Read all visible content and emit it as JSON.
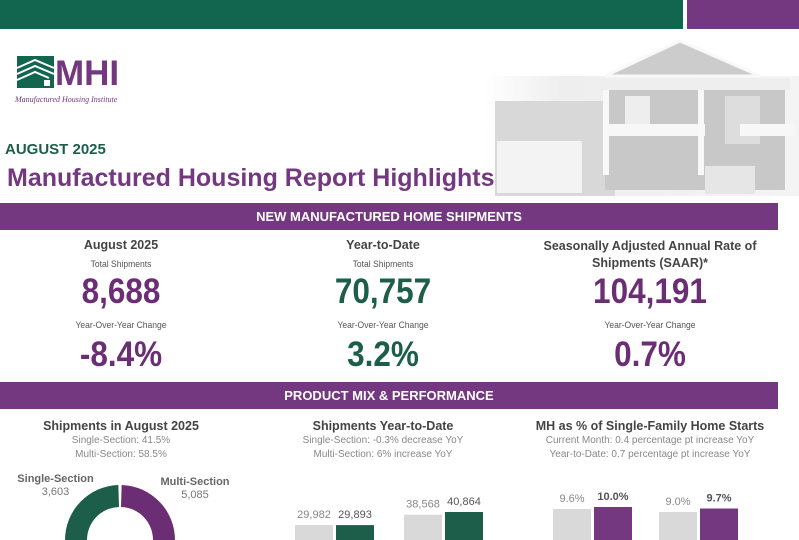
{
  "header": {
    "logo_text": "MHI",
    "logo_subtitle": "Manufactured Housing Institute",
    "date": "AUGUST 2025",
    "title": "Manufactured Housing Report Highlights"
  },
  "colors": {
    "green": "#12654f",
    "purple": "#733880",
    "gray": "#d9d9d9"
  },
  "shipments": {
    "band": "NEW MANUFACTURED HOME SHIPMENTS",
    "cards": [
      {
        "heading": "August 2025",
        "sub": "Total Shipments",
        "value": "8,688",
        "yoy_label": "Year-Over-Year Change",
        "yoy": "-8.4%"
      },
      {
        "heading": "Year-to-Date",
        "sub": "Total Shipments",
        "value": "70,757",
        "yoy_label": "Year-Over-Year Change",
        "yoy": "3.2%"
      },
      {
        "heading": "Seasonally Adjusted Annual Rate of Shipments (SAAR)*",
        "sub": "",
        "value": "104,191",
        "yoy_label": "Year-Over-Year Change",
        "yoy": "0.7%"
      }
    ]
  },
  "product_mix": {
    "band": "PRODUCT MIX & PERFORMANCE",
    "panels": [
      {
        "heading": "Shipments in August 2025",
        "lines": [
          "Single-Section: 41.5%",
          "Multi-Section: 58.5%"
        ]
      },
      {
        "heading": "Shipments Year-to-Date",
        "lines": [
          "Single-Section: -0.3% decrease YoY",
          "Multi-Section: 6% increase YoY"
        ]
      },
      {
        "heading": "MH as % of Single-Family Home Starts",
        "lines": [
          "Current Month: 0.4 percentage pt increase YoY",
          "Year-to-Date: 0.7 percentage pt increase YoY"
        ]
      }
    ]
  },
  "chart_data": [
    {
      "type": "pie",
      "donut": true,
      "slices": [
        {
          "name": "Single-Section",
          "value": 3603,
          "label": "3,603",
          "color": "#1c5e49"
        },
        {
          "name": "Multi-Section",
          "value": 5085,
          "label": "5,085",
          "color": "#6b2d74"
        }
      ]
    },
    {
      "type": "bar",
      "groups": [
        {
          "values": [
            29982,
            29893
          ],
          "labels": [
            "29,982",
            "29,893"
          ],
          "colors": [
            "#d9d9d9",
            "#1c5e49"
          ]
        },
        {
          "values": [
            38568,
            40864
          ],
          "labels": [
            "38,568",
            "40,864"
          ],
          "colors": [
            "#d9d9d9",
            "#1c5e49"
          ]
        }
      ]
    },
    {
      "type": "bar",
      "groups": [
        {
          "values": [
            9.6,
            10.0
          ],
          "labels": [
            "9.6%",
            "10.0%"
          ],
          "colors": [
            "#d9d9d9",
            "#733880"
          ]
        },
        {
          "values": [
            9.0,
            9.7
          ],
          "labels": [
            "9.0%",
            "9.7%"
          ],
          "colors": [
            "#d9d9d9",
            "#733880"
          ]
        }
      ]
    }
  ]
}
